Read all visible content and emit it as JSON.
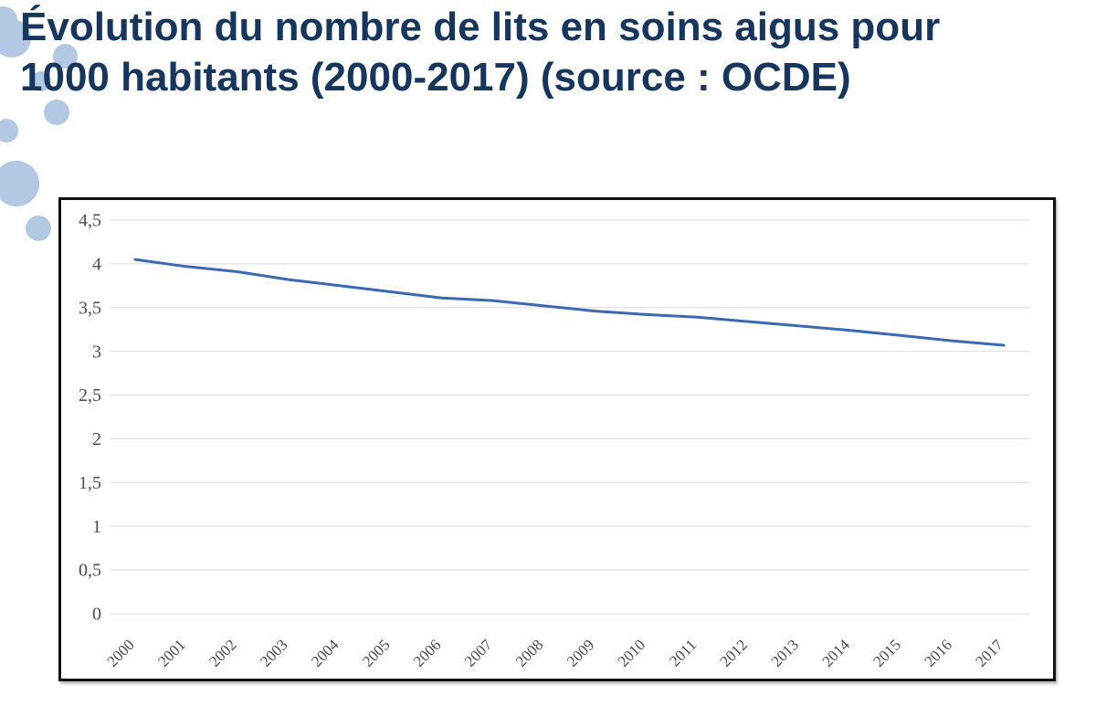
{
  "title": {
    "text": "Évolution du nombre de lits en soins aigus pour 1000 habitants (2000-2017) (source : OCDE)",
    "line1": "Évolution du nombre de lits en soins aigus pour",
    "line2": "1000 habitants (2000-2017) (source : OCDE)",
    "color": "#16365d"
  },
  "decor": {
    "bubble_color": "#b3c9e3"
  },
  "chart_data": {
    "type": "line",
    "title": "Évolution du nombre de lits en soins aigus pour 1000 habitants (2000-2017) (source : OCDE)",
    "xlabel": "",
    "ylabel": "",
    "categories": [
      "2000",
      "2001",
      "2002",
      "2003",
      "2004",
      "2005",
      "2006",
      "2007",
      "2008",
      "2009",
      "2010",
      "2011",
      "2012",
      "2013",
      "2014",
      "2015",
      "2016",
      "2017"
    ],
    "values": [
      4.05,
      3.97,
      3.91,
      3.82,
      3.75,
      3.68,
      3.61,
      3.58,
      3.52,
      3.46,
      3.42,
      3.39,
      3.34,
      3.29,
      3.24,
      3.18,
      3.12,
      3.07
    ],
    "ylim": [
      0,
      4.5
    ],
    "y_tick_values": [
      4.5,
      4,
      3.5,
      3,
      2.5,
      2,
      1.5,
      1,
      0.5,
      0
    ],
    "y_tick_labels": [
      "4,5",
      "4",
      "3,5",
      "3",
      "2,5",
      "2",
      "1,5",
      "1",
      "0,5",
      "0"
    ],
    "grid": true,
    "legend": false,
    "line_color": "#3c69b4",
    "gridline_color": "#d9d9d9",
    "tick_label_color": "#4d4d4d"
  }
}
